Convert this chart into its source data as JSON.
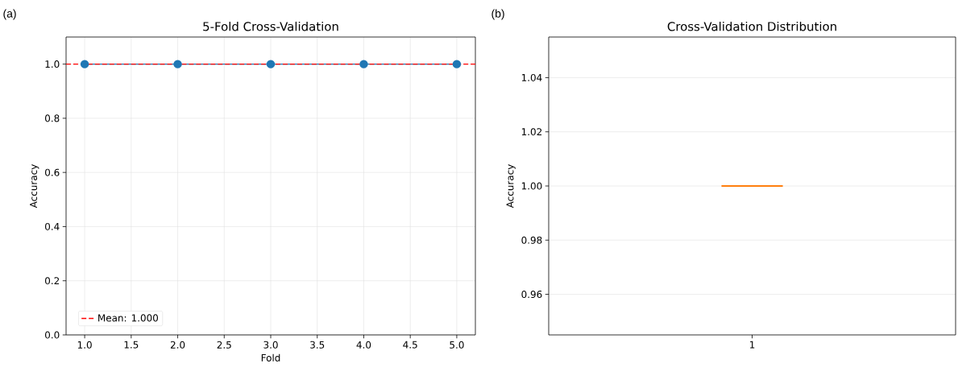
{
  "chart_data": [
    {
      "type": "line",
      "title": "5-Fold Cross-Validation",
      "xlabel": "Fold",
      "ylabel": "Accuracy",
      "x": [
        1,
        2,
        3,
        4,
        5
      ],
      "series": [
        {
          "color": "#1f77b4",
          "values": [
            1.0,
            1.0,
            1.0,
            1.0,
            1.0
          ]
        }
      ],
      "marker": "circle",
      "line_style": "solid",
      "xlim": [
        0.8,
        5.2
      ],
      "ylim": [
        0,
        1.1
      ],
      "xticks": [
        {
          "value": 1,
          "label": "1.0"
        },
        {
          "value": 1.5,
          "label": "1.5"
        },
        {
          "value": 2,
          "label": "2.0"
        },
        {
          "value": 2.5,
          "label": "2.5"
        },
        {
          "value": 3,
          "label": "3.0"
        },
        {
          "value": 3.5,
          "label": "3.5"
        },
        {
          "value": 4,
          "label": "4.0"
        },
        {
          "value": 4.5,
          "label": "4.5"
        },
        {
          "value": 5,
          "label": "5.0"
        }
      ],
      "yticks": [
        {
          "value": 0,
          "label": "0.0"
        },
        {
          "value": 0.2,
          "label": "0.2"
        },
        {
          "value": 0.4,
          "label": "0.4"
        },
        {
          "value": 0.6,
          "label": "0.6"
        },
        {
          "value": 0.8,
          "label": "0.8"
        },
        {
          "value": 1,
          "label": "1.0"
        }
      ],
      "ref_lines": [
        {
          "axis": "y",
          "value": 1.0,
          "label": "Mean: 1.000",
          "color": "#ff0000",
          "line_style": "dashed"
        }
      ],
      "grid": true,
      "legend": "bottom left",
      "annotations": [
        "(a)"
      ]
    },
    {
      "type": "box",
      "title": "Cross-Validation Distribution",
      "ylabel": "Accuracy",
      "categories": [
        "1"
      ],
      "boxes": [
        {
          "low": 1.0,
          "q1": 1.0,
          "median": 1.0,
          "q3": 1.0,
          "high": 1.0
        }
      ],
      "color": "#ff7f0e",
      "ylim": [
        0.945,
        1.055
      ],
      "yticks": [
        0.96,
        0.98,
        {
          "value": 1.0,
          "label": "1.00"
        },
        1.02,
        1.04
      ],
      "grid": "y",
      "annotations": [
        "(b)"
      ]
    }
  ]
}
